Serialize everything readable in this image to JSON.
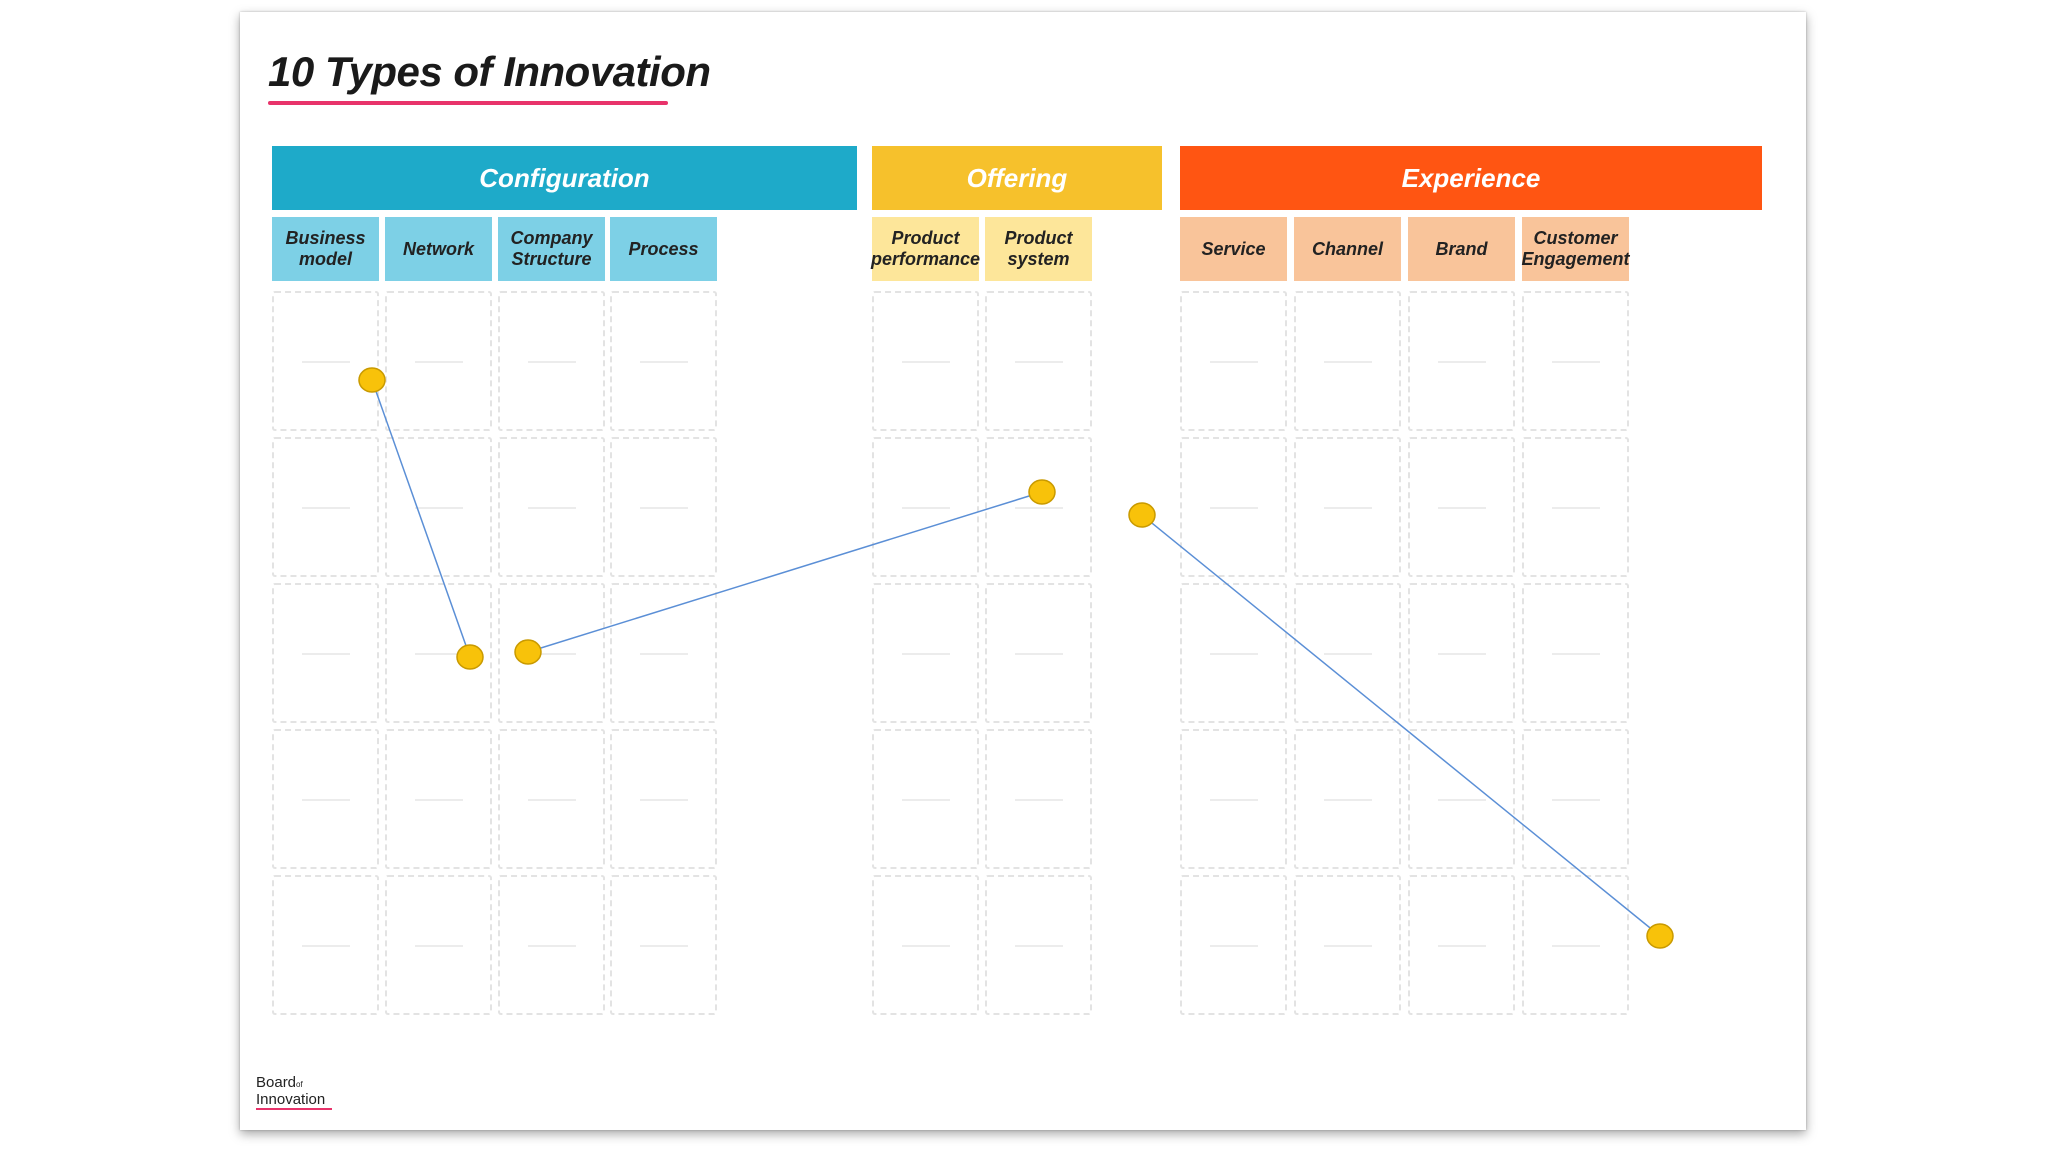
{
  "title": "10 Types of Innovation",
  "categories": [
    {
      "label": "Configuration",
      "color": "#1eaac9"
    },
    {
      "label": "Offering",
      "color": "#f6c12c"
    },
    {
      "label": "Experience",
      "color": "#ff5512"
    }
  ],
  "columns": [
    {
      "label": "Business\nmodel",
      "color": "#7dd0e6"
    },
    {
      "label": "Network",
      "color": "#7dd0e6"
    },
    {
      "label": "Company\nStructure",
      "color": "#7dd0e6"
    },
    {
      "label": "Process",
      "color": "#7dd0e6"
    },
    {
      "label": "Product\nperformance",
      "color": "#fde69a"
    },
    {
      "label": "Product\nsystem",
      "color": "#fde69a"
    },
    {
      "label": "Service",
      "color": "#f9c49a"
    },
    {
      "label": "Channel",
      "color": "#f9c49a"
    },
    {
      "label": "Brand",
      "color": "#f9c49a"
    },
    {
      "label": "Customer\nEngagement",
      "color": "#f9c49a"
    }
  ],
  "grid_rows": 5,
  "marker_color": "#f8c20a",
  "marker_stroke": "#c99a00",
  "line_color": "#5b8fd6",
  "logo": {
    "line1": "Board",
    "of": "of",
    "line2": "Innovation"
  }
}
